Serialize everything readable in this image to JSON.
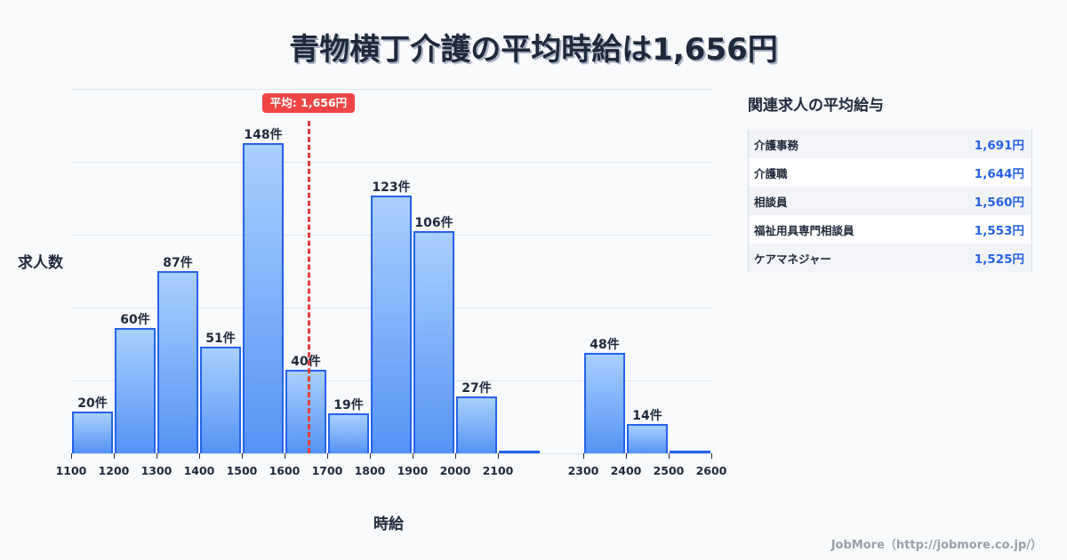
{
  "title": "青物横丁介護の平均時給は1,656円",
  "chart": {
    "ylabel": "求人数",
    "xlabel": "時給",
    "average_badge": "平均: 1,656円",
    "bar_labels": [
      "20件",
      "60件",
      "87件",
      "51件",
      "148件",
      "40件",
      "19件",
      "123件",
      "106件",
      "27件",
      "",
      "",
      "48件",
      "14件",
      ""
    ],
    "tick_labels": [
      "1100",
      "1200",
      "1300",
      "1400",
      "1500",
      "1600",
      "1700",
      "1800",
      "1900",
      "2000",
      "2100",
      "2300",
      "2400",
      "2500",
      "2600"
    ]
  },
  "chart_data": {
    "type": "bar",
    "title": "青物横丁介護の平均時給は1,656円",
    "xlabel": "時給",
    "ylabel": "求人数",
    "bin_edges": [
      1100,
      1200,
      1300,
      1400,
      1500,
      1600,
      1700,
      1800,
      1900,
      2000,
      2100,
      2200,
      2300,
      2400,
      2500,
      2600
    ],
    "categories": [
      "1100-1200",
      "1200-1300",
      "1300-1400",
      "1400-1500",
      "1500-1600",
      "1600-1700",
      "1700-1800",
      "1800-1900",
      "1900-2000",
      "2000-2100",
      "2100-2200",
      "2200-2300",
      "2300-2400",
      "2400-2500",
      "2500-2600"
    ],
    "values": [
      20,
      60,
      87,
      51,
      148,
      40,
      19,
      123,
      106,
      27,
      1,
      0,
      48,
      14,
      1
    ],
    "value_unit": "件",
    "x_tick_labels": [
      "1100",
      "1200",
      "1300",
      "1400",
      "1500",
      "1600",
      "1700",
      "1800",
      "1900",
      "2000",
      "2100",
      "2300",
      "2400",
      "2500",
      "2600"
    ],
    "ylim": [
      0,
      174
    ],
    "grid": true,
    "annotations": [
      {
        "type": "vline",
        "x": 1656,
        "label": "平均: 1,656円",
        "color": "#ef4444",
        "style": "dashed"
      }
    ],
    "bar_color": "#2563eb"
  },
  "sidebar": {
    "title": "関連求人の平均給与",
    "items": [
      {
        "name": "介護事務",
        "value": "1,691円"
      },
      {
        "name": "介護職",
        "value": "1,644円"
      },
      {
        "name": "相談員",
        "value": "1,560円"
      },
      {
        "name": "福祉用具専門相談員",
        "value": "1,553円"
      },
      {
        "name": "ケアマネジャー",
        "value": "1,525円"
      }
    ]
  },
  "footer": "JobMore（http://jobmore.co.jp/）",
  "colors": {
    "accent": "#2563eb",
    "average_line": "#ef4444",
    "text": "#1e293b",
    "background": "#f8fafc"
  }
}
